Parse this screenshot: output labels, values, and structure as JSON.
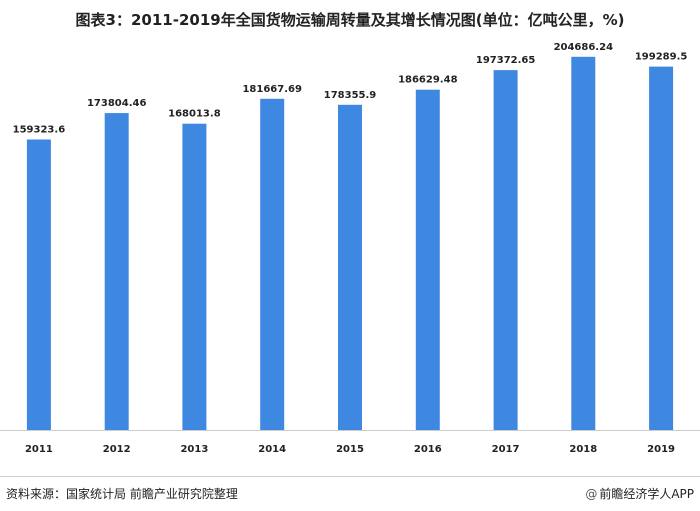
{
  "title": "图表3：2011-2019年全国货物运输周转量及其增长情况图(单位：亿吨公里，%)",
  "footer": {
    "source": "资料来源：国家统计局 前瞻产业研究院整理",
    "brand": "前瞻经济学人APP"
  },
  "colors": {
    "bar": "#3f88e2",
    "axis": "#cccccc"
  },
  "chart_data": {
    "type": "bar",
    "categories": [
      "2011",
      "2012",
      "2013",
      "2014",
      "2015",
      "2016",
      "2017",
      "2018",
      "2019"
    ],
    "values": [
      159323.6,
      173804.46,
      168013.8,
      181667.69,
      178355.9,
      186629.48,
      197372.65,
      204686.24,
      199289.5
    ],
    "data_labels": [
      "159323.6",
      "173804.46",
      "168013.8",
      "181667.69",
      "178355.9",
      "186629.48",
      "197372.65",
      "204686.24",
      "199289.5"
    ],
    "ylim": [
      0,
      215000
    ],
    "grid": false,
    "legend": "none"
  }
}
